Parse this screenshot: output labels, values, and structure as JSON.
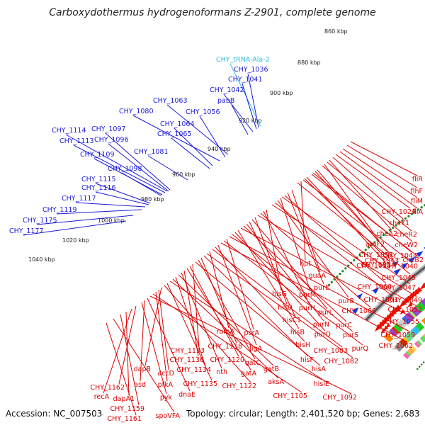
{
  "header": {
    "title": "Carboxydothermus hydrogenoformans Z-2901, complete genome"
  },
  "footer": {
    "accession": "Accession: NC_007503",
    "summary": "Topology: circular; Length: 2,401,520 bp; Genes: 2,683"
  },
  "colors": {
    "forward_label": "#1a1adb",
    "reverse_label": "#dd0000",
    "trna_label": "#33bbdd",
    "forward_arrow": "#1133ee",
    "reverse_arrow": "#ee1100",
    "tick": "#228822",
    "backbone": "#888888"
  },
  "kbp_ticks": [
    "860 kbp",
    "880 kbp",
    "900 kbp",
    "920 kbp",
    "940 kbp",
    "960 kbp",
    "980 kbp",
    "1000 kbp",
    "1020 kbp",
    "1040 kbp"
  ],
  "forward_labels": [
    "CHY_tRNA-Ala-2",
    "CHY_1036",
    "CHY_1041",
    "CHY_1042",
    "pabB",
    "CHY_1063",
    "CHY_1080",
    "CHY_1056",
    "CHY_1064",
    "CHY_1065",
    "CHY_1114",
    "CHY_1097",
    "CHY_1113",
    "CHY_1096",
    "CHY_1109",
    "CHY_1081",
    "CHY_1098",
    "CHY_1115",
    "CHY_1116",
    "CHY_1117",
    "CHY_1119",
    "CHY_1175",
    "CHY_1177"
  ],
  "reverse_labels": [
    "fliR",
    "flhF",
    "fliM",
    "fliA",
    "CHY_1024",
    "cheY1",
    "cheA2",
    "cheR2",
    "aroF2",
    "cheW2",
    "CHY_1057",
    "CHY_1043",
    "CHY_1044",
    "cheB2",
    "hpt",
    "CHY_1058",
    "CHY_1054",
    "CHY_1040",
    "guaA",
    "CHY_1045",
    "purE",
    "CHY_1060",
    "CHY_1047",
    "purM",
    "purB",
    "CHY_1061",
    "CHY_1049",
    "hisG",
    "purH",
    "CHY_1066",
    "CHY_1052",
    "hisD",
    "purL",
    "hisC1",
    "purN",
    "purC",
    "CHY_1055",
    "hisB",
    "purD",
    "purS",
    "CHY_1059",
    "pcrA",
    "purQ",
    "CHY_1062",
    "ligA",
    "hisH",
    "CHY_1083",
    "rumA",
    "CHY_1082",
    "hisF",
    "CHY_1118",
    "gatC",
    "hisA",
    "CHY_1133",
    "CHY_1120",
    "gatA",
    "CHY_1136",
    "nth",
    "gatB",
    "CHY_1134",
    "aksA",
    "hisIE",
    "CHY_1135",
    "CHY_1122",
    "dapB",
    "accD",
    "pfkA",
    "CHY_1105",
    "CHY_1092",
    "dnaE",
    "asd",
    "pyk",
    "CHY_1162",
    "recA",
    "dapA1",
    "CHY_1159",
    "spoVFA",
    "CHY_1161"
  ]
}
